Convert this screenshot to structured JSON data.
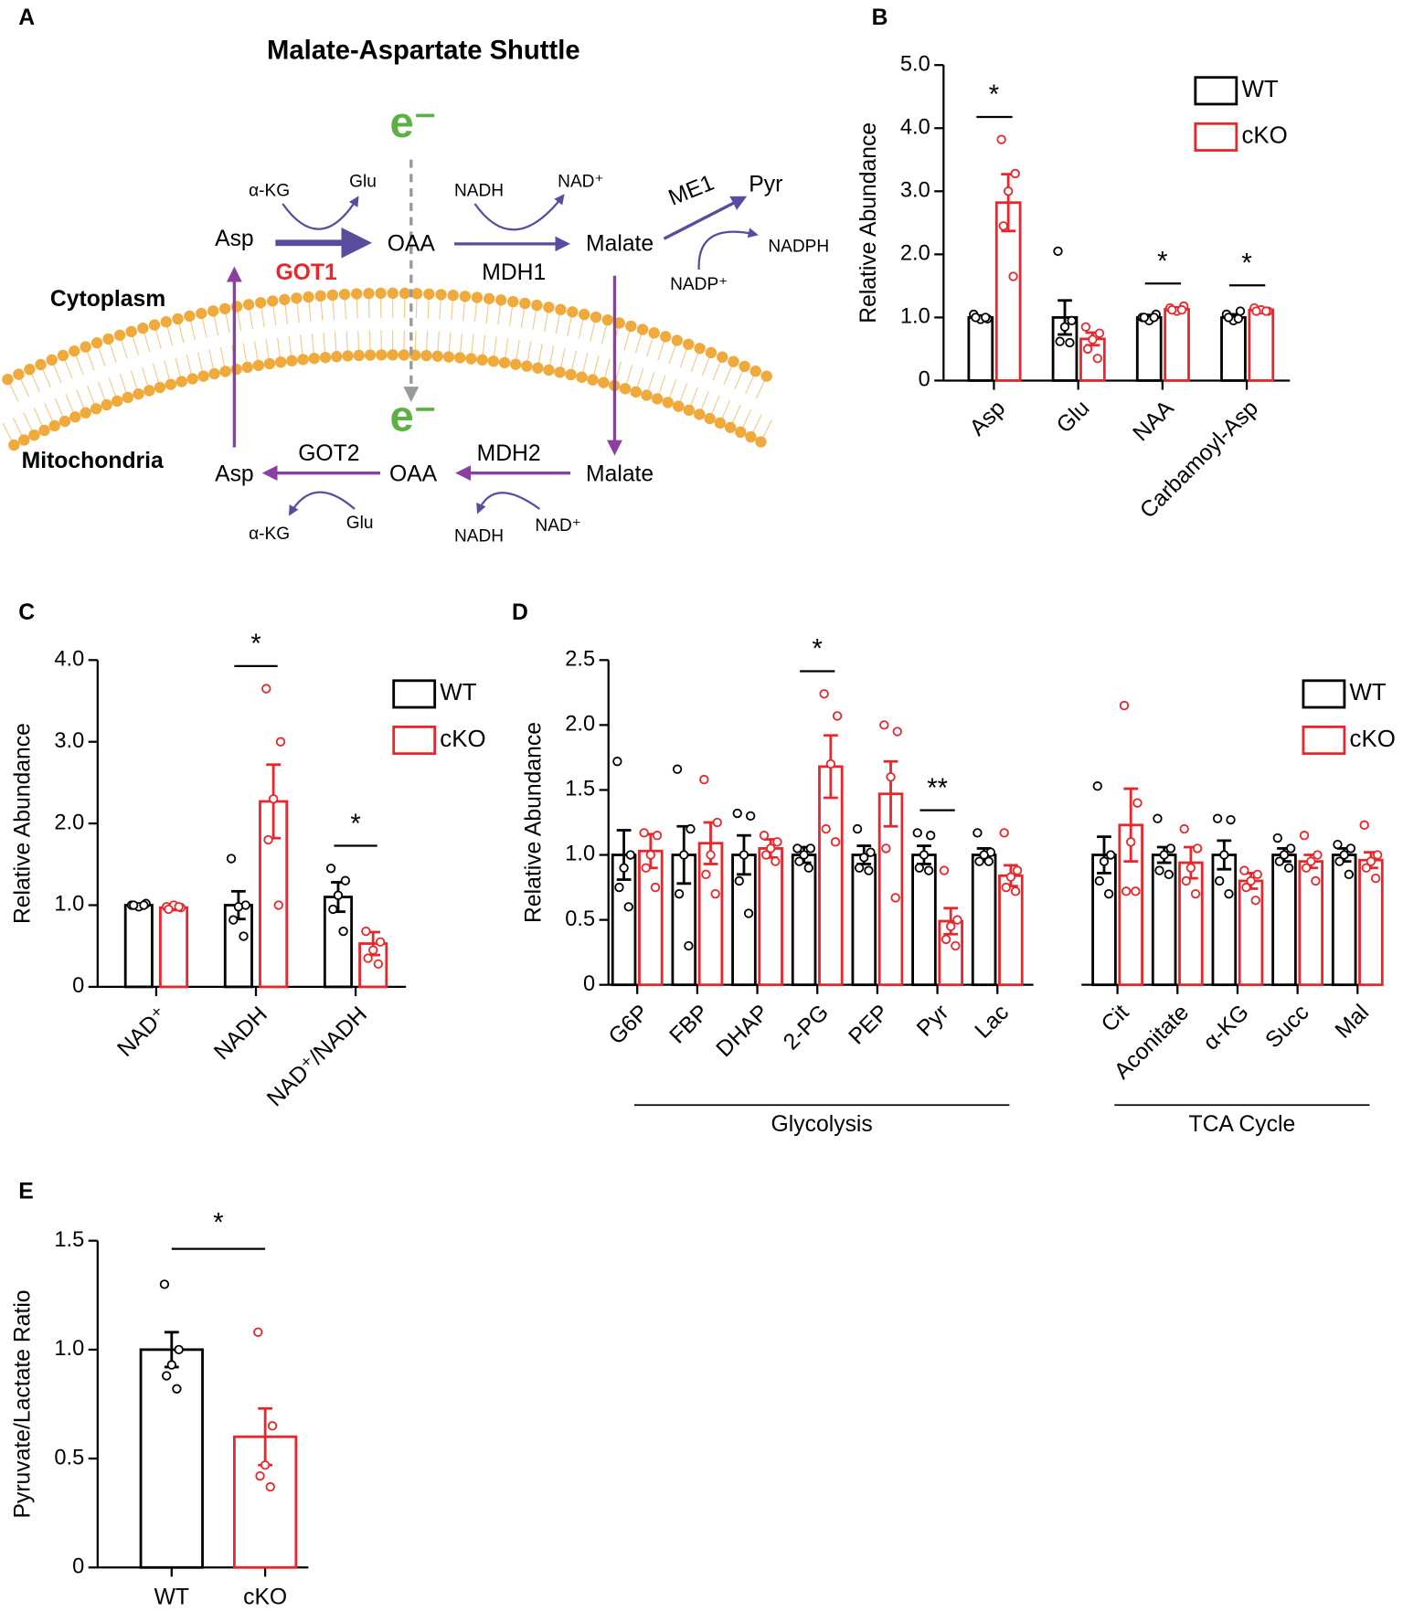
{
  "diagram": {
    "panel": "A",
    "texts": [
      "Malate-Aspartate Shuttle",
      "e⁻",
      "Cytoplasm",
      "Mitochondria",
      "Asp",
      "GOT1",
      "α-KG",
      "Glu",
      "OAA",
      "NADH",
      "NAD⁺",
      "MDH1",
      "Malate",
      "ME1",
      "Pyr",
      "NADPH",
      "NADP⁺",
      "e⁻",
      "Asp",
      "GOT2",
      "OAA",
      "α-KG",
      "Glu",
      "Malate",
      "MDH2",
      "NADH",
      "NAD⁺"
    ]
  },
  "chart_data": [
    {
      "panel": "B",
      "type": "bar",
      "ylabel": "Relative Abundance",
      "legend": "upper right",
      "categories": [
        "Asp",
        "Glu",
        "NAA",
        "Carbamoyl-Asp"
      ],
      "ylim": [
        0,
        5
      ],
      "yticks": [
        0,
        {
          "value": 1,
          "label": "1.0"
        },
        {
          "value": 2,
          "label": "2.0"
        },
        {
          "value": 3,
          "label": "3.0"
        },
        {
          "value": 4,
          "label": "4.0"
        },
        {
          "value": 5,
          "label": "5.0"
        }
      ],
      "series": [
        {
          "name": "WT",
          "color": "#000000",
          "values": [
            1.0,
            1.0,
            1.0,
            1.0
          ],
          "errors": [
            0.03,
            0.27,
            0.04,
            0.05
          ],
          "points": [
            [
              1.05,
              0.98,
              0.97,
              1.0,
              1.0
            ],
            [
              2.05,
              0.95,
              0.85,
              0.62,
              0.6
            ],
            [
              1.0,
              1.05,
              0.95,
              1.0,
              1.0
            ],
            [
              1.05,
              1.1,
              0.95,
              1.0,
              0.98
            ]
          ]
        },
        {
          "name": "cKO",
          "color": "#e8262b",
          "values": [
            2.82,
            0.66,
            1.13,
            1.12
          ],
          "errors": [
            0.45,
            0.1,
            0.03,
            0.03
          ],
          "points": [
            [
              3.82,
              3.28,
              3.0,
              2.45,
              1.65
            ],
            [
              0.85,
              0.75,
              0.65,
              0.5,
              0.35
            ],
            [
              1.15,
              1.18,
              1.1,
              1.12,
              1.12
            ],
            [
              1.15,
              1.1,
              1.12,
              1.1,
              1.1
            ]
          ]
        }
      ],
      "significance": [
        "*",
        null,
        "*",
        "*"
      ]
    },
    {
      "panel": "C",
      "type": "bar",
      "ylabel": "Relative Abundance",
      "legend": "upper right",
      "categories": [
        "NAD⁺",
        "NADH",
        "NAD⁺/NADH"
      ],
      "ylim": [
        0,
        4
      ],
      "yticks": [
        0,
        {
          "value": 1,
          "label": "1.0"
        },
        {
          "value": 2,
          "label": "2.0"
        },
        {
          "value": 3,
          "label": "3.0"
        },
        {
          "value": 4,
          "label": "4.0"
        }
      ],
      "series": [
        {
          "name": "WT",
          "color": "#000000",
          "values": [
            1.0,
            1.0,
            1.1
          ],
          "errors": [
            0.02,
            0.17,
            0.18
          ],
          "points": [
            [
              1.0,
              1.02,
              0.98,
              1.0,
              1.0
            ],
            [
              1.57,
              1.0,
              0.98,
              0.82,
              0.62
            ],
            [
              1.45,
              1.3,
              1.12,
              0.95,
              0.68
            ]
          ]
        },
        {
          "name": "cKO",
          "color": "#e8262b",
          "values": [
            0.97,
            2.27,
            0.53
          ],
          "errors": [
            0.03,
            0.45,
            0.14
          ],
          "points": [
            [
              0.98,
              0.97,
              1.0,
              0.95,
              0.98
            ],
            [
              3.65,
              3.0,
              2.3,
              1.8,
              1.0
            ],
            [
              0.68,
              0.55,
              0.45,
              0.35,
              0.28
            ]
          ]
        }
      ],
      "significance": [
        null,
        "*",
        "*"
      ]
    },
    {
      "panel": "D",
      "type": "bar",
      "ylabel": "Relative Abundance",
      "legend": "upper right",
      "groups": [
        {
          "name": "Glycolysis",
          "categories": [
            "G6P",
            "FBP",
            "DHAP",
            "2-PG",
            "PEP",
            "Pyr",
            "Lac"
          ]
        },
        {
          "name": "TCA Cycle",
          "categories": [
            "Cit",
            "Aconitate",
            "α-KG",
            "Succ",
            "Mal"
          ]
        }
      ],
      "ylim": [
        0,
        2.5
      ],
      "yticks": [
        0,
        0.5,
        {
          "value": 1,
          "label": "1.0"
        },
        1.5,
        {
          "value": 2,
          "label": "2.0"
        },
        2.5
      ],
      "series": [
        {
          "name": "WT",
          "color": "#000000",
          "values": [
            1.0,
            1.0,
            1.0,
            1.0,
            1.0,
            1.0,
            1.0,
            1.0,
            1.0,
            1.0,
            1.0,
            1.0
          ],
          "errors": [
            0.19,
            0.22,
            0.15,
            0.06,
            0.07,
            0.07,
            0.05,
            0.14,
            0.06,
            0.11,
            0.05,
            0.05
          ],
          "points": [
            [
              1.72,
              1.0,
              0.9,
              0.75,
              0.6
            ],
            [
              1.66,
              1.2,
              1.0,
              0.7,
              0.3
            ],
            [
              1.32,
              1.3,
              1.0,
              0.8,
              0.55
            ],
            [
              1.05,
              1.05,
              1.0,
              0.95,
              0.9
            ],
            [
              1.2,
              1.02,
              0.98,
              0.9,
              0.88
            ],
            [
              1.17,
              1.15,
              1.0,
              0.9,
              0.88
            ],
            [
              1.17,
              1.02,
              1.0,
              0.95,
              0.95
            ],
            [
              1.53,
              1.0,
              0.95,
              0.8,
              0.7
            ],
            [
              1.28,
              1.05,
              1.0,
              0.88,
              0.85
            ],
            [
              1.28,
              1.27,
              1.0,
              0.8,
              0.7
            ],
            [
              1.13,
              1.05,
              1.0,
              0.95,
              0.9
            ],
            [
              1.08,
              1.05,
              1.0,
              0.95,
              0.85
            ]
          ]
        },
        {
          "name": "cKO",
          "color": "#e8262b",
          "values": [
            1.03,
            1.09,
            1.05,
            1.68,
            1.47,
            0.49,
            0.84,
            1.23,
            0.94,
            0.8,
            0.95,
            0.96
          ],
          "errors": [
            0.13,
            0.16,
            0.07,
            0.24,
            0.25,
            0.1,
            0.08,
            0.28,
            0.12,
            0.06,
            0.05,
            0.06
          ],
          "points": [
            [
              1.17,
              1.15,
              1.0,
              0.9,
              0.75
            ],
            [
              1.58,
              1.25,
              1.0,
              0.85,
              0.7
            ],
            [
              1.15,
              1.1,
              1.05,
              1.0,
              0.95
            ],
            [
              2.24,
              2.07,
              1.7,
              1.2,
              1.1
            ],
            [
              2.0,
              1.95,
              1.6,
              1.05,
              0.67
            ],
            [
              0.88,
              0.5,
              0.45,
              0.35,
              0.3
            ],
            [
              1.17,
              0.88,
              0.83,
              0.75,
              0.72
            ],
            [
              2.15,
              1.4,
              1.1,
              0.72,
              0.72
            ],
            [
              1.2,
              1.05,
              0.9,
              0.8,
              0.7
            ],
            [
              0.88,
              0.85,
              0.8,
              0.75,
              0.65
            ],
            [
              1.15,
              1.0,
              0.95,
              0.9,
              0.8
            ],
            [
              1.23,
              1.0,
              0.95,
              0.9,
              0.82
            ]
          ]
        }
      ],
      "significance": [
        null,
        null,
        null,
        "*",
        null,
        "**",
        null,
        null,
        null,
        null,
        null,
        null
      ]
    },
    {
      "panel": "E",
      "type": "bar",
      "ylabel": "Pyruvate/Lactate Ratio",
      "categories": [
        "WT",
        "cKO"
      ],
      "colors": [
        "#000000",
        "#e8262b"
      ],
      "ylim": [
        0,
        1.5
      ],
      "yticks": [
        0,
        0.5,
        {
          "value": 1,
          "label": "1.0"
        },
        1.5
      ],
      "values": [
        1.0,
        0.6
      ],
      "errors": [
        0.08,
        0.13
      ],
      "points": [
        [
          1.3,
          1.0,
          0.93,
          0.88,
          0.82
        ],
        [
          1.08,
          0.65,
          0.47,
          0.42,
          0.37
        ]
      ],
      "significance": "*"
    }
  ]
}
